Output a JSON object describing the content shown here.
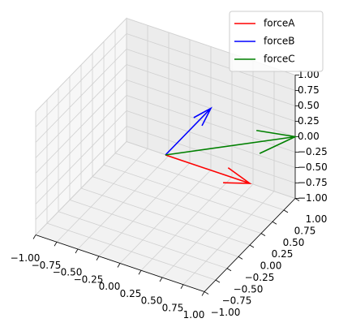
{
  "chart_data": {
    "type": "quiver3d",
    "series": [
      {
        "name": "forceA",
        "color": "#ff0000",
        "start": [
          0,
          0,
          0
        ],
        "values": [
          1,
          0,
          0
        ]
      },
      {
        "name": "forceB",
        "color": "#0000ff",
        "start": [
          0,
          0,
          0
        ],
        "values": [
          0,
          1,
          0
        ]
      },
      {
        "name": "forceC",
        "color": "#008000",
        "start": [
          0,
          0,
          0
        ],
        "values": [
          1,
          1,
          0
        ]
      }
    ],
    "xlim": [
      -1,
      1
    ],
    "ylim": [
      -1,
      1
    ],
    "zlim": [
      -1,
      1
    ],
    "xticks": [
      {
        "value": -1,
        "label": "−1.00"
      },
      {
        "value": -0.75,
        "label": "−0.75"
      },
      {
        "value": -0.5,
        "label": "−0.50"
      },
      {
        "value": -0.25,
        "label": "−0.25"
      },
      {
        "value": 0,
        "label": "0.00"
      },
      {
        "value": 0.25,
        "label": "0.25"
      },
      {
        "value": 0.5,
        "label": "0.50"
      },
      {
        "value": 0.75,
        "label": "0.75"
      },
      {
        "value": 1,
        "label": "1.00"
      }
    ],
    "yticks": [
      {
        "value": -1,
        "label": "−1.00"
      },
      {
        "value": -0.75,
        "label": "−0.75"
      },
      {
        "value": -0.5,
        "label": "−0.50"
      },
      {
        "value": -0.25,
        "label": "−0.25"
      },
      {
        "value": 0,
        "label": "0.00"
      },
      {
        "value": 0.25,
        "label": "0.25"
      },
      {
        "value": 0.5,
        "label": "0.50"
      },
      {
        "value": 0.75,
        "label": "0.75"
      },
      {
        "value": 1,
        "label": "1.00"
      }
    ],
    "zticks": [
      {
        "value": -1,
        "label": "−1.00"
      },
      {
        "value": -0.75,
        "label": "−0.75"
      },
      {
        "value": -0.5,
        "label": "−0.50"
      },
      {
        "value": -0.25,
        "label": "−0.25"
      },
      {
        "value": 0,
        "label": "0.00"
      },
      {
        "value": 0.25,
        "label": "0.25"
      },
      {
        "value": 0.5,
        "label": "0.50"
      },
      {
        "value": 0.75,
        "label": "0.75"
      },
      {
        "value": 1,
        "label": "1.00"
      }
    ],
    "grid": true,
    "legend": "upper right"
  }
}
